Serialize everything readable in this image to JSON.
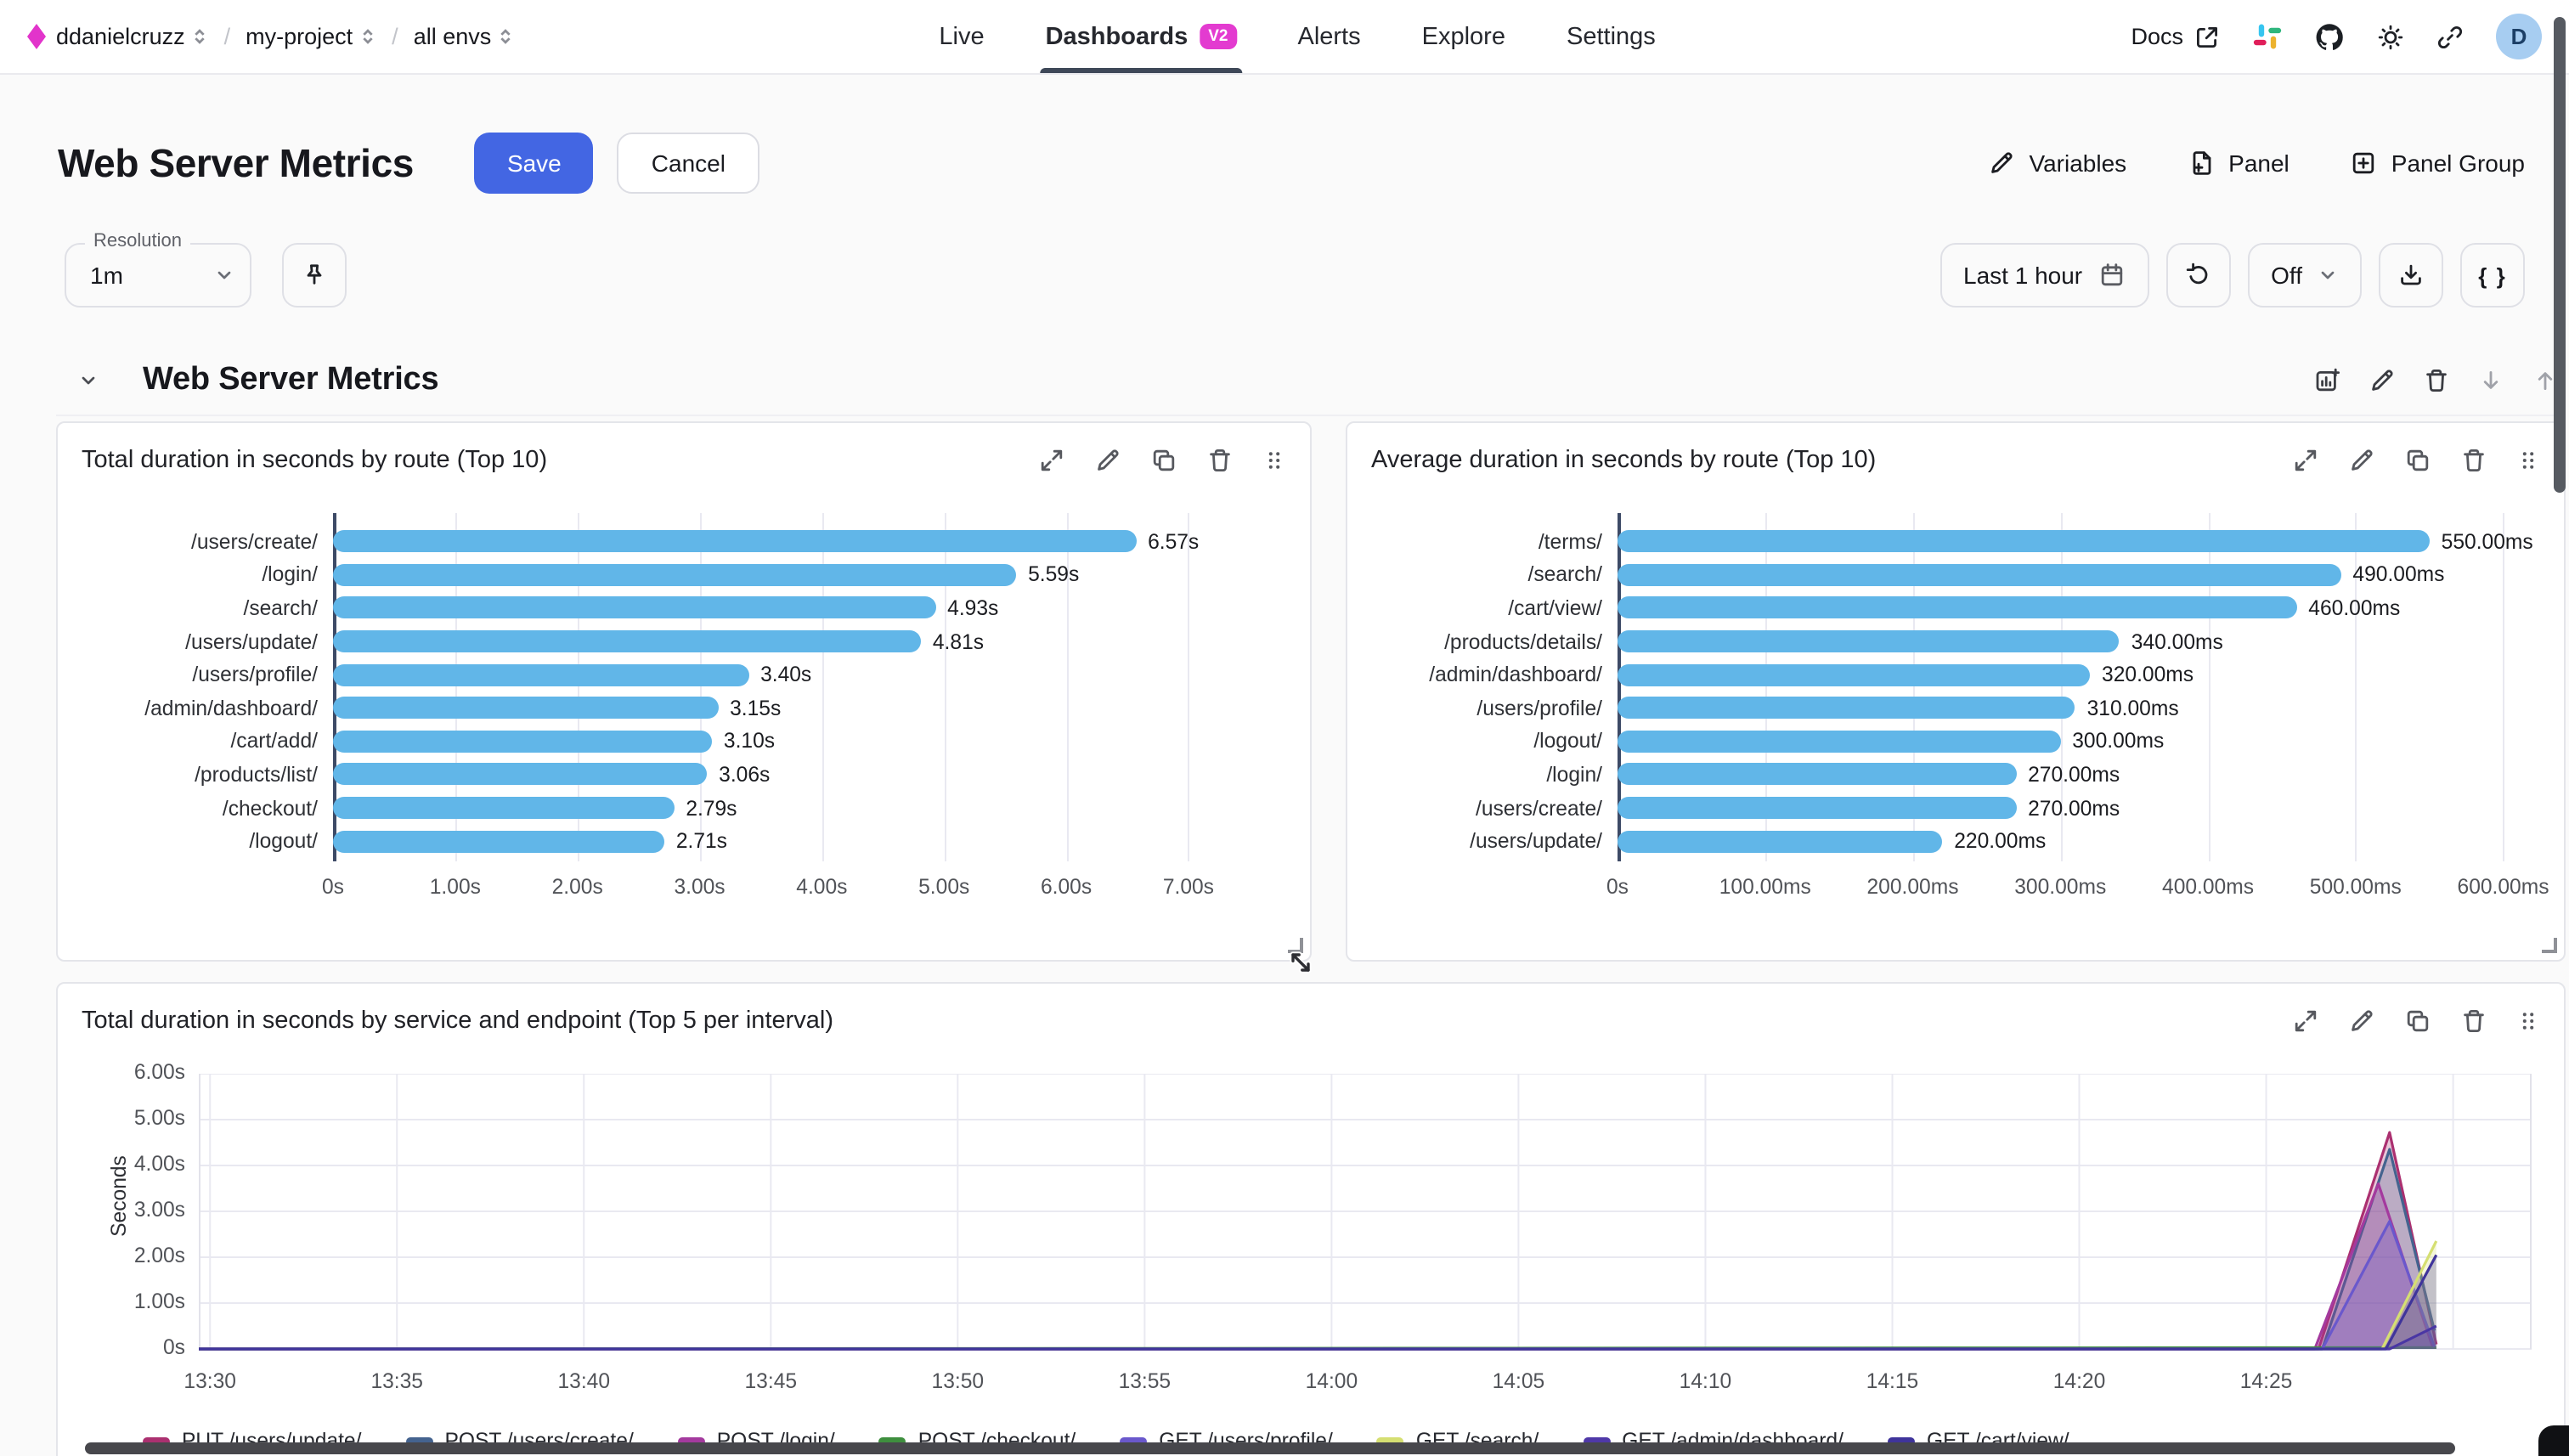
{
  "topbar": {
    "breadcrumb": [
      "ddanielcruzz",
      "my-project",
      "all envs"
    ],
    "nav": [
      {
        "label": "Live",
        "active": false
      },
      {
        "label": "Dashboards",
        "active": true,
        "badge": "V2"
      },
      {
        "label": "Alerts",
        "active": false
      },
      {
        "label": "Explore",
        "active": false
      },
      {
        "label": "Settings",
        "active": false
      }
    ],
    "docs_label": "Docs",
    "avatar_initial": "D"
  },
  "header": {
    "title": "Web Server Metrics",
    "save_label": "Save",
    "cancel_label": "Cancel",
    "variables_label": "Variables",
    "panel_label": "Panel",
    "panel_group_label": "Panel Group"
  },
  "toolbar": {
    "resolution_label": "Resolution",
    "resolution_value": "1m",
    "time_range_label": "Last 1 hour",
    "refresh_off_label": "Off",
    "braces_label": "{ }"
  },
  "section": {
    "title": "Web Server Metrics"
  },
  "colors": {
    "accent_magenta": "#e33bd0",
    "save_blue": "#4366e3",
    "bar_blue": "#61b6e8",
    "nav_underline": "#3e4858",
    "grid": "#e9e9f1",
    "axis": "#3d4a66"
  },
  "chart_data": [
    {
      "type": "bar",
      "orientation": "horizontal",
      "title": "Total duration in seconds by route (Top 10)",
      "categories": [
        "/users/create/",
        "/login/",
        "/search/",
        "/users/update/",
        "/users/profile/",
        "/admin/dashboard/",
        "/cart/add/",
        "/products/list/",
        "/checkout/",
        "/logout/"
      ],
      "values": [
        6.57,
        5.59,
        4.93,
        4.81,
        3.4,
        3.15,
        3.1,
        3.06,
        2.79,
        2.71
      ],
      "value_labels": [
        "6.57s",
        "5.59s",
        "4.93s",
        "4.81s",
        "3.40s",
        "3.15s",
        "3.10s",
        "3.06s",
        "2.79s",
        "2.71s"
      ],
      "xlim": [
        0,
        7.8
      ],
      "xticks": [
        {
          "v": 0,
          "label": "0s"
        },
        {
          "v": 1,
          "label": "1.00s"
        },
        {
          "v": 2,
          "label": "2.00s"
        },
        {
          "v": 3,
          "label": "3.00s"
        },
        {
          "v": 4,
          "label": "4.00s"
        },
        {
          "v": 5,
          "label": "5.00s"
        },
        {
          "v": 6,
          "label": "6.00s"
        },
        {
          "v": 7,
          "label": "7.00s"
        }
      ],
      "bar_color": "#61b6e8",
      "label_col": 148
    },
    {
      "type": "bar",
      "orientation": "horizontal",
      "title": "Average duration in seconds by route (Top 10)",
      "categories": [
        "/terms/",
        "/search/",
        "/cart/view/",
        "/products/details/",
        "/admin/dashboard/",
        "/users/profile/",
        "/logout/",
        "/login/",
        "/users/create/",
        "/users/update/"
      ],
      "values": [
        550,
        490,
        460,
        340,
        320,
        310,
        300,
        270,
        270,
        220
      ],
      "value_labels": [
        "550.00ms",
        "490.00ms",
        "460.00ms",
        "340.00ms",
        "320.00ms",
        "310.00ms",
        "300.00ms",
        "270.00ms",
        "270.00ms",
        "220.00ms"
      ],
      "xlim": [
        0,
        625
      ],
      "xticks": [
        {
          "v": 0,
          "label": "0s"
        },
        {
          "v": 100,
          "label": "100.00ms"
        },
        {
          "v": 200,
          "label": "200.00ms"
        },
        {
          "v": 300,
          "label": "300.00ms"
        },
        {
          "v": 400,
          "label": "400.00ms"
        },
        {
          "v": 500,
          "label": "500.00ms"
        },
        {
          "v": 600,
          "label": "600.00ms"
        }
      ],
      "bar_color": "#61b6e8",
      "label_col": 145
    },
    {
      "type": "area",
      "title": "Total duration in seconds by service and endpoint (Top 5 per interval)",
      "ylabel": "Seconds",
      "ylim": [
        0,
        6
      ],
      "yticks": [
        {
          "v": 0,
          "label": "0s"
        },
        {
          "v": 1,
          "label": "1.00s"
        },
        {
          "v": 2,
          "label": "2.00s"
        },
        {
          "v": 3,
          "label": "3.00s"
        },
        {
          "v": 4,
          "label": "4.00s"
        },
        {
          "v": 5,
          "label": "5.00s"
        },
        {
          "v": 6,
          "label": "6.00s"
        }
      ],
      "xdomain": [
        -0.3,
        62.1
      ],
      "xticks": [
        {
          "t": 0,
          "label": "13:30"
        },
        {
          "t": 5,
          "label": "13:35"
        },
        {
          "t": 10,
          "label": "13:40"
        },
        {
          "t": 15,
          "label": "13:45"
        },
        {
          "t": 20,
          "label": "13:50"
        },
        {
          "t": 25,
          "label": "13:55"
        },
        {
          "t": 30,
          "label": "14:00"
        },
        {
          "t": 35,
          "label": "14:05"
        },
        {
          "t": 40,
          "label": "14:10"
        },
        {
          "t": 45,
          "label": "14:15"
        },
        {
          "t": 50,
          "label": "14:20"
        },
        {
          "t": 55,
          "label": "14:25"
        }
      ],
      "extra_gridlines_t": [
        60
      ],
      "series": [
        {
          "name": "PUT /users/update/",
          "color": "#ab3070",
          "points": [
            [
              -0.3,
              0
            ],
            [
              56.4,
              0
            ],
            [
              58.3,
              4.72
            ],
            [
              59.55,
              0.1
            ]
          ]
        },
        {
          "name": "POST /users/create/",
          "color": "#44638f",
          "points": [
            [
              -0.3,
              0
            ],
            [
              56.5,
              0
            ],
            [
              58.3,
              4.35
            ],
            [
              59.5,
              0.4
            ]
          ]
        },
        {
          "name": "POST /login/",
          "color": "#a43a9e",
          "points": [
            [
              -0.3,
              0
            ],
            [
              56.3,
              0
            ],
            [
              58.0,
              3.6
            ],
            [
              59.45,
              0.05
            ]
          ]
        },
        {
          "name": "POST /checkout/",
          "color": "#3e8f3e",
          "points": [
            [
              -0.3,
              0
            ],
            [
              59.55,
              0.03
            ]
          ]
        },
        {
          "name": "GET /users/profile/",
          "color": "#6a58cc",
          "points": [
            [
              -0.3,
              0
            ],
            [
              56.5,
              0
            ],
            [
              58.3,
              2.78
            ],
            [
              59.5,
              0.05
            ]
          ]
        },
        {
          "name": "GET /search/",
          "color": "#d5df72",
          "points": [
            [
              -0.3,
              0
            ],
            [
              58.1,
              0
            ],
            [
              59.55,
              2.35
            ]
          ]
        },
        {
          "name": "GET /admin/dashboard/",
          "color": "#4f38a8",
          "points": [
            [
              -0.3,
              0
            ],
            [
              58.3,
              0
            ],
            [
              59.55,
              0.5
            ]
          ]
        },
        {
          "name": "GET /cart/view/",
          "color": "#3f349b",
          "points": [
            [
              -0.3,
              0
            ],
            [
              58.2,
              0
            ],
            [
              59.55,
              2.05
            ]
          ]
        }
      ]
    }
  ]
}
